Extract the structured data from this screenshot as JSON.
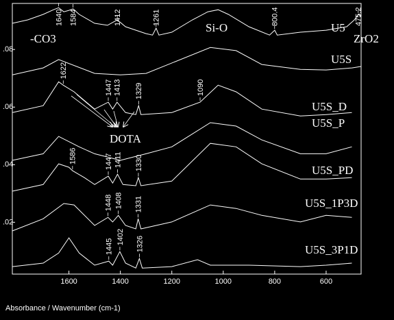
{
  "chart_data": {
    "type": "line",
    "xlim": [
      1820,
      464
    ],
    "ylim": [
      0.002,
      0.096
    ],
    "xticks": [
      1600,
      1400,
      1200,
      1000,
      800,
      600
    ],
    "yticks": [
      {
        "value": 0.02,
        "label": ".02"
      },
      {
        "value": 0.04,
        "label": ".04"
      },
      {
        "value": 0.06,
        "label": ".06"
      },
      {
        "value": 0.08,
        "label": ".08"
      }
    ],
    "annotations": [
      "-CO3",
      "Si-O",
      "ZrO2",
      "DOTA"
    ],
    "footer": "Absorbance / Wavenumber (cm-1)",
    "series": [
      {
        "name": "U5",
        "color": "#ffffff",
        "peaks": [
          1640,
          1584,
          1412,
          1261,
          800.4,
          475.2
        ],
        "x": [
          1820,
          1760,
          1700,
          1660,
          1640,
          1620,
          1600,
          1584,
          1560,
          1500,
          1450,
          1412,
          1380,
          1300,
          1275,
          1261,
          1250,
          1200,
          1120,
          1060,
          1020,
          980,
          900,
          820,
          800,
          790,
          700,
          600,
          520,
          490,
          475,
          464
        ],
        "values": [
          0.0891,
          0.0903,
          0.0922,
          0.0938,
          0.0945,
          0.0931,
          0.0936,
          0.0941,
          0.0922,
          0.0891,
          0.0884,
          0.0903,
          0.0879,
          0.0855,
          0.085,
          0.0874,
          0.085,
          0.086,
          0.0903,
          0.0931,
          0.0938,
          0.0922,
          0.0879,
          0.085,
          0.0867,
          0.085,
          0.086,
          0.0867,
          0.0879,
          0.0903,
          0.0922,
          0.0914
        ]
      },
      {
        "name": "U5S",
        "color": "#ffffff",
        "peaks": [],
        "x": [
          1820,
          1700,
          1640,
          1500,
          1400,
          1300,
          1050,
          950,
          850,
          700,
          600,
          500,
          464
        ],
        "values": [
          0.0712,
          0.0736,
          0.0765,
          0.0717,
          0.0712,
          0.0717,
          0.0807,
          0.0796,
          0.0748,
          0.0731,
          0.0729,
          0.0736,
          0.0741
        ]
      },
      {
        "name": "U5S_D",
        "color": "#ffffff",
        "peaks": [
          1622,
          1447,
          1413,
          1329,
          1090
        ],
        "x": [
          1820,
          1700,
          1640,
          1622,
          1580,
          1500,
          1447,
          1430,
          1413,
          1380,
          1340,
          1329,
          1320,
          1200,
          1090,
          1020,
          950,
          850,
          700,
          600,
          500
        ],
        "values": [
          0.0581,
          0.0605,
          0.0688,
          0.0676,
          0.0653,
          0.0593,
          0.0617,
          0.0593,
          0.0617,
          0.0581,
          0.0574,
          0.0605,
          0.0574,
          0.0581,
          0.0617,
          0.0676,
          0.0653,
          0.0593,
          0.0569,
          0.0574,
          0.0581
        ]
      },
      {
        "name": "U5S_P",
        "color": "#ffffff",
        "peaks": [],
        "x": [
          1820,
          1700,
          1640,
          1560,
          1500,
          1400,
          1300,
          1200,
          1050,
          950,
          850,
          700,
          600,
          500
        ],
        "values": [
          0.0415,
          0.0438,
          0.0498,
          0.0462,
          0.0438,
          0.0415,
          0.0438,
          0.0462,
          0.0546,
          0.0534,
          0.0486,
          0.0438,
          0.0438,
          0.0462
        ]
      },
      {
        "name": "U5S_PD",
        "color": "#ffffff",
        "peaks": [
          1586,
          1447,
          1411,
          1330
        ],
        "x": [
          1820,
          1700,
          1640,
          1600,
          1586,
          1540,
          1500,
          1447,
          1430,
          1411,
          1390,
          1340,
          1330,
          1320,
          1200,
          1050,
          950,
          850,
          700,
          600,
          500
        ],
        "values": [
          0.0308,
          0.0331,
          0.0403,
          0.0391,
          0.0379,
          0.0355,
          0.0331,
          0.036,
          0.0336,
          0.0367,
          0.0331,
          0.0327,
          0.0355,
          0.0327,
          0.0343,
          0.0474,
          0.0462,
          0.0403,
          0.035,
          0.035,
          0.0355
        ]
      },
      {
        "name": "U5S_1P3D",
        "color": "#ffffff",
        "peaks": [
          1448,
          1408,
          1331
        ],
        "x": [
          1820,
          1700,
          1620,
          1580,
          1500,
          1448,
          1430,
          1408,
          1380,
          1340,
          1331,
          1320,
          1200,
          1050,
          950,
          850,
          700,
          600,
          500
        ],
        "values": [
          0.017,
          0.0212,
          0.0265,
          0.026,
          0.0189,
          0.0217,
          0.0201,
          0.0224,
          0.0189,
          0.0177,
          0.0212,
          0.0177,
          0.0201,
          0.026,
          0.0248,
          0.0224,
          0.0201,
          0.0224,
          0.0217
        ]
      },
      {
        "name": "U5S_3P1D",
        "color": "#ffffff",
        "peaks": [
          1445,
          1402,
          1326
        ],
        "x": [
          1820,
          1700,
          1640,
          1600,
          1560,
          1500,
          1445,
          1430,
          1402,
          1380,
          1340,
          1326,
          1315,
          1200,
          1100,
          1050,
          900,
          700,
          600,
          500
        ],
        "values": [
          0.0046,
          0.0058,
          0.0093,
          0.0146,
          0.0093,
          0.0051,
          0.0065,
          0.0051,
          0.0098,
          0.0058,
          0.0041,
          0.0074,
          0.0041,
          0.0046,
          0.007,
          0.0051,
          0.0051,
          0.0046,
          0.0051,
          0.0058
        ]
      }
    ]
  }
}
